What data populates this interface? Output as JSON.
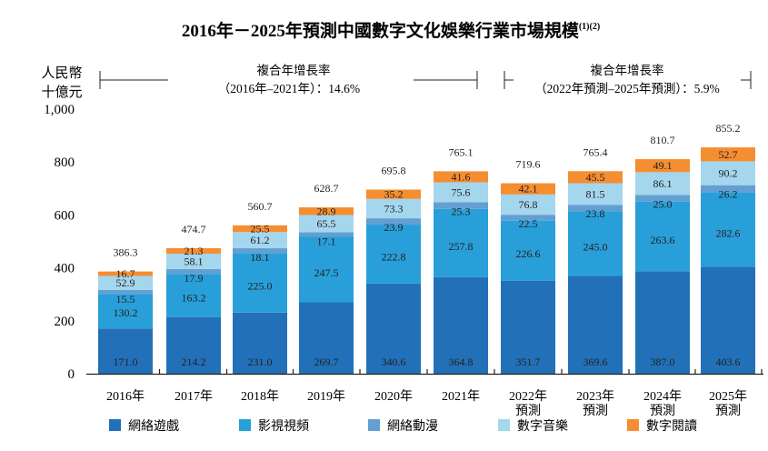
{
  "chart_data": {
    "type": "bar",
    "stacked": true,
    "title": "2016年－2025年預測中國數字文化娛樂行業市場規模",
    "title_superscript": "(1)(2)",
    "ylabel_lines": [
      "人民幣",
      "十億元"
    ],
    "xlabel": "",
    "ylim": [
      0,
      1000
    ],
    "yticks": [
      0,
      200,
      400,
      600,
      800,
      1000
    ],
    "ytick_labels": [
      "0",
      "200",
      "400",
      "600",
      "800",
      "1,000"
    ],
    "grid": false,
    "legend_position": "bottom",
    "categories": [
      [
        "2016年"
      ],
      [
        "2017年"
      ],
      [
        "2018年"
      ],
      [
        "2019年"
      ],
      [
        "2020年"
      ],
      [
        "2021年"
      ],
      [
        "2022年",
        "預測"
      ],
      [
        "2023年",
        "預測"
      ],
      [
        "2024年",
        "預測"
      ],
      [
        "2025年",
        "預測"
      ]
    ],
    "series": [
      {
        "name": "網絡遊戲",
        "color": "#2271b8",
        "values": [
          171.0,
          214.2,
          231.0,
          269.7,
          340.6,
          364.8,
          351.7,
          369.6,
          387.0,
          403.6
        ]
      },
      {
        "name": "影視視頻",
        "color": "#289fd9",
        "values": [
          130.2,
          163.2,
          225.0,
          247.5,
          222.8,
          257.8,
          226.6,
          245.0,
          263.6,
          282.6
        ]
      },
      {
        "name": "網絡動漫",
        "color": "#629fd3",
        "values": [
          15.5,
          17.9,
          18.1,
          17.1,
          23.9,
          25.3,
          22.5,
          23.8,
          25.0,
          26.2
        ]
      },
      {
        "name": "數字音樂",
        "color": "#a4d6ee",
        "values": [
          52.9,
          58.1,
          61.2,
          65.5,
          73.3,
          75.6,
          76.8,
          81.5,
          86.1,
          90.2
        ]
      },
      {
        "name": "數字閱讀",
        "color": "#f58e31",
        "values": [
          16.7,
          21.3,
          25.5,
          28.9,
          35.2,
          41.6,
          42.1,
          45.5,
          49.1,
          52.7
        ]
      }
    ],
    "totals": [
      386.3,
      474.7,
      560.7,
      628.7,
      695.8,
      765.1,
      719.6,
      765.4,
      810.7,
      855.2
    ],
    "annotations": [
      {
        "lines": [
          "複合年增長率",
          "（2016年–2021年）：14.6%"
        ],
        "span": "2016-2021"
      },
      {
        "lines": [
          "複合年增長率",
          "（2022年預測–2025年預測）：5.9%"
        ],
        "span": "2022-2025"
      }
    ]
  }
}
